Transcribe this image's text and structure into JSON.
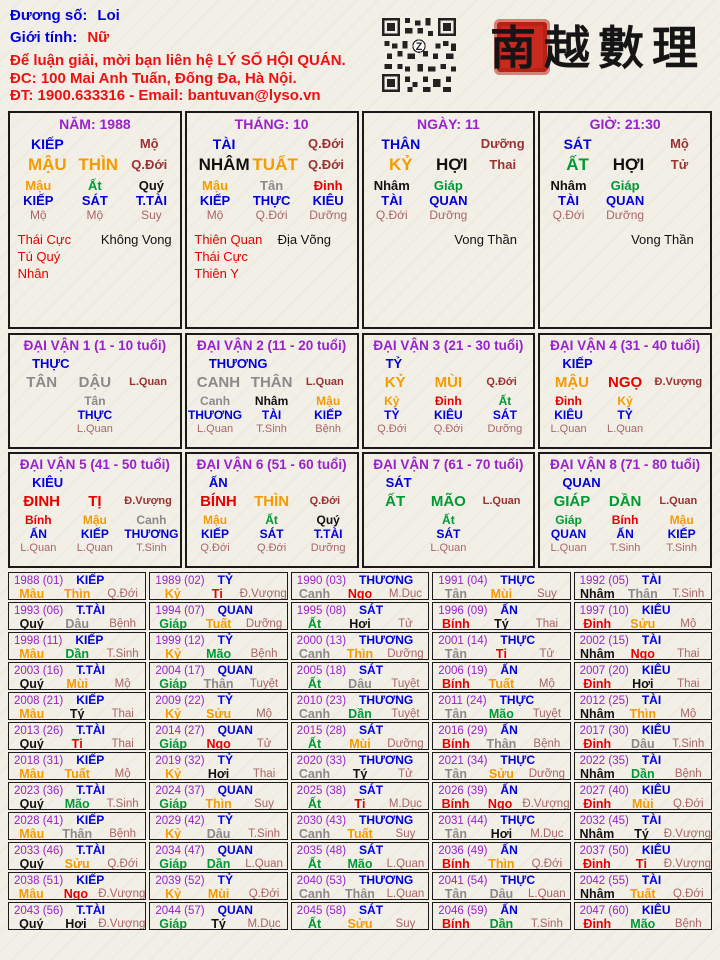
{
  "palette": {
    "blue": "#0000DB",
    "purple": "#9922CC",
    "orange": "#F59B00",
    "red": "#E80000",
    "green": "#009933",
    "gray": "#8A8A8A",
    "black": "#111111",
    "maroon": "#993333",
    "stage_light": "#AA6666",
    "header_red": "#EE1111",
    "seal_red": "#C92A1D"
  },
  "header": {
    "name_label": "Đương số:",
    "name_value": "Loi",
    "gender_label": "Giới tính:",
    "gender_value": "Nữ",
    "contact_line1": "Để luận giải, mời bạn liên hệ LÝ SỐ HỘI QUÁN.",
    "contact_line2": "ĐC: 100 Mai Anh Tuấn, Đống Đa, Hà Nội.",
    "contact_line3": "ĐT: 1900.633316 - Email: bantuvan@lyso.vn",
    "logo_text": "南越數理",
    "qr_label": "Z"
  },
  "element_colors": {
    "Giáp": "green",
    "Ất": "green",
    "Bính": "red",
    "Đinh": "red",
    "Mậu": "orange",
    "Kỷ": "orange",
    "Canh": "gray",
    "Tân": "gray",
    "Nhâm": "black",
    "Quý": "black",
    "Dần": "green",
    "Mão": "green",
    "Tị": "red",
    "Ngọ": "red",
    "Thìn": "orange",
    "Tuất": "orange",
    "Sửu": "orange",
    "Mùi": "orange",
    "Thân": "gray",
    "Dậu": "gray",
    "Hợi": "black",
    "Tý": "black"
  },
  "pillars": [
    {
      "title": "NĂM: 1988",
      "god": "KIẾP",
      "top_right_stage": "Mộ",
      "stem": "MẬU",
      "stem_color": "orange",
      "branch": "THÌN",
      "branch_color": "orange",
      "stage": "Q.Đới",
      "hidden": [
        {
          "stem": "Mậu",
          "color": "orange",
          "god": "KIẾP",
          "stage": "Mộ"
        },
        {
          "stem": "Ất",
          "color": "green",
          "god": "SÁT",
          "stage": "Mộ"
        },
        {
          "stem": "Quý",
          "color": "black",
          "god": "T.TÀI",
          "stage": "Suy"
        }
      ],
      "notes_red": [
        "Thái Cực",
        "Tú Quý Nhân"
      ],
      "notes_black": [
        "Không Vong"
      ]
    },
    {
      "title": "THÁNG: 10",
      "god": "TÀI",
      "top_right_stage": "Q.Đới",
      "stem": "NHÂM",
      "stem_color": "black",
      "branch": "TUẤT",
      "branch_color": "orange",
      "stage": "Q.Đới",
      "hidden": [
        {
          "stem": "Mậu",
          "color": "orange",
          "god": "KIẾP",
          "stage": "Mộ"
        },
        {
          "stem": "Tân",
          "color": "gray",
          "god": "THỰC",
          "stage": "Q.Đới"
        },
        {
          "stem": "Đinh",
          "color": "red",
          "god": "KIÊU",
          "stage": "Dưỡng"
        }
      ],
      "notes_red": [
        "Thiên Quan",
        "Thái Cực",
        "Thiên Y"
      ],
      "notes_black": [
        "Địa Võng"
      ]
    },
    {
      "title": "NGÀY: 11",
      "god": "THÂN",
      "top_right_stage": "Dưỡng",
      "stem": "KỶ",
      "stem_color": "orange",
      "branch": "HỢI",
      "branch_color": "black",
      "stage": "Thai",
      "hidden": [
        {
          "stem": "Nhâm",
          "color": "black",
          "god": "TÀI",
          "stage": "Q.Đới"
        },
        {
          "stem": "Giáp",
          "color": "green",
          "god": "QUAN",
          "stage": "Dưỡng"
        }
      ],
      "notes_red": [],
      "notes_black": [
        "Vong Thần"
      ]
    },
    {
      "title": "GIỜ: 21:30",
      "god": "SÁT",
      "top_right_stage": "Mộ",
      "stem": "ẤT",
      "stem_color": "green",
      "branch": "HỢI",
      "branch_color": "black",
      "stage": "Tử",
      "hidden": [
        {
          "stem": "Nhâm",
          "color": "black",
          "god": "TÀI",
          "stage": "Q.Đới"
        },
        {
          "stem": "Giáp",
          "color": "green",
          "god": "QUAN",
          "stage": "Dưỡng"
        }
      ],
      "notes_red": [],
      "notes_black": [
        "Vong Thần"
      ]
    }
  ],
  "dai_van": [
    {
      "title": "ĐẠI VẬN 1 (1 - 10 tuổi)",
      "god": "THỰC",
      "stem": "TÂN",
      "stem_color": "gray",
      "branch": "DẬU",
      "branch_color": "gray",
      "stage": "L.Quan",
      "hidden": [
        {
          "stem": "Tân",
          "color": "gray",
          "god": "THỰC",
          "stage": "L.Quan"
        }
      ]
    },
    {
      "title": "ĐẠI VẬN 2 (11 - 20 tuổi)",
      "god": "THƯƠNG",
      "stem": "CANH",
      "stem_color": "gray",
      "branch": "THÂN",
      "branch_color": "gray",
      "stage": "L.Quan",
      "hidden": [
        {
          "stem": "Canh",
          "color": "gray",
          "god": "THƯƠNG",
          "stage": "L.Quan"
        },
        {
          "stem": "Nhâm",
          "color": "black",
          "god": "TÀI",
          "stage": "T.Sinh"
        },
        {
          "stem": "Mậu",
          "color": "orange",
          "god": "KIẾP",
          "stage": "Bệnh"
        }
      ]
    },
    {
      "title": "ĐẠI VẬN 3 (21 - 30 tuổi)",
      "god": "TỶ",
      "stem": "KỶ",
      "stem_color": "orange",
      "branch": "MÙI",
      "branch_color": "orange",
      "stage": "Q.Đới",
      "hidden": [
        {
          "stem": "Kỷ",
          "color": "orange",
          "god": "TỶ",
          "stage": "Q.Đới"
        },
        {
          "stem": "Đinh",
          "color": "red",
          "god": "KIÊU",
          "stage": "Q.Đới"
        },
        {
          "stem": "Ất",
          "color": "green",
          "god": "SÁT",
          "stage": "Dưỡng"
        }
      ]
    },
    {
      "title": "ĐẠI VẬN 4 (31 - 40 tuổi)",
      "god": "KIẾP",
      "stem": "MẬU",
      "stem_color": "orange",
      "branch": "NGỌ",
      "branch_color": "red",
      "stage": "Đ.Vượng",
      "hidden": [
        {
          "stem": "Đinh",
          "color": "red",
          "god": "KIÊU",
          "stage": "L.Quan"
        },
        {
          "stem": "Kỷ",
          "color": "orange",
          "god": "TỶ",
          "stage": "L.Quan"
        }
      ]
    },
    {
      "title": "ĐẠI VẬN 5 (41 - 50 tuổi)",
      "god": "KIÊU",
      "stem": "ĐINH",
      "stem_color": "red",
      "branch": "TỊ",
      "branch_color": "red",
      "stage": "Đ.Vượng",
      "hidden": [
        {
          "stem": "Bính",
          "color": "red",
          "god": "ẤN",
          "stage": "L.Quan"
        },
        {
          "stem": "Mậu",
          "color": "orange",
          "god": "KIẾP",
          "stage": "L.Quan"
        },
        {
          "stem": "Canh",
          "color": "gray",
          "god": "THƯƠNG",
          "stage": "T.Sinh"
        }
      ]
    },
    {
      "title": "ĐẠI VẬN 6 (51 - 60 tuổi)",
      "god": "ẤN",
      "stem": "BÍNH",
      "stem_color": "red",
      "branch": "THÌN",
      "branch_color": "orange",
      "stage": "Q.Đới",
      "hidden": [
        {
          "stem": "Mậu",
          "color": "orange",
          "god": "KIẾP",
          "stage": "Q.Đới"
        },
        {
          "stem": "Ất",
          "color": "green",
          "god": "SÁT",
          "stage": "Q.Đới"
        },
        {
          "stem": "Quý",
          "color": "black",
          "god": "T.TÀI",
          "stage": "Dưỡng"
        }
      ]
    },
    {
      "title": "ĐẠI VẬN 7 (61 - 70 tuổi)",
      "god": "SÁT",
      "stem": "ẤT",
      "stem_color": "green",
      "branch": "MÃO",
      "branch_color": "green",
      "stage": "L.Quan",
      "hidden": [
        {
          "stem": "Ất",
          "color": "green",
          "god": "SÁT",
          "stage": "L.Quan"
        }
      ]
    },
    {
      "title": "ĐẠI VẬN 8 (71 - 80 tuổi)",
      "god": "QUAN",
      "stem": "GIÁP",
      "stem_color": "green",
      "branch": "DẦN",
      "branch_color": "green",
      "stage": "L.Quan",
      "hidden": [
        {
          "stem": "Giáp",
          "color": "green",
          "god": "QUAN",
          "stage": "L.Quan"
        },
        {
          "stem": "Bính",
          "color": "red",
          "god": "ẤN",
          "stage": "T.Sinh"
        },
        {
          "stem": "Mậu",
          "color": "orange",
          "god": "KIẾP",
          "stage": "T.Sinh"
        }
      ]
    }
  ],
  "years": [
    {
      "label": "1988 (01)",
      "god": "KIẾP",
      "stem": "Mậu",
      "branch": "Thìn",
      "stage": "Q.Đới"
    },
    {
      "label": "1989 (02)",
      "god": "TỶ",
      "stem": "Kỷ",
      "branch": "Tị",
      "stage": "Đ.Vượng"
    },
    {
      "label": "1990 (03)",
      "god": "THƯƠNG",
      "stem": "Canh",
      "branch": "Ngọ",
      "stage": "M.Dục"
    },
    {
      "label": "1991 (04)",
      "god": "THỰC",
      "stem": "Tân",
      "branch": "Mùi",
      "stage": "Suy"
    },
    {
      "label": "1992 (05)",
      "god": "TÀI",
      "stem": "Nhâm",
      "branch": "Thân",
      "stage": "T.Sinh"
    },
    {
      "label": "1993 (06)",
      "god": "T.TÀI",
      "stem": "Quý",
      "branch": "Dậu",
      "stage": "Bệnh"
    },
    {
      "label": "1994 (07)",
      "god": "QUAN",
      "stem": "Giáp",
      "branch": "Tuất",
      "stage": "Dưỡng"
    },
    {
      "label": "1995 (08)",
      "god": "SÁT",
      "stem": "Ất",
      "branch": "Hợi",
      "stage": "Tử"
    },
    {
      "label": "1996 (09)",
      "god": "ẤN",
      "stem": "Bính",
      "branch": "Tý",
      "stage": "Thai"
    },
    {
      "label": "1997 (10)",
      "god": "KIÊU",
      "stem": "Đinh",
      "branch": "Sửu",
      "stage": "Mộ"
    },
    {
      "label": "1998 (11)",
      "god": "KIẾP",
      "stem": "Mậu",
      "branch": "Dần",
      "stage": "T.Sinh"
    },
    {
      "label": "1999 (12)",
      "god": "TỶ",
      "stem": "Kỷ",
      "branch": "Mão",
      "stage": "Bệnh"
    },
    {
      "label": "2000 (13)",
      "god": "THƯƠNG",
      "stem": "Canh",
      "branch": "Thìn",
      "stage": "Dưỡng"
    },
    {
      "label": "2001 (14)",
      "god": "THỰC",
      "stem": "Tân",
      "branch": "Tị",
      "stage": "Tử"
    },
    {
      "label": "2002 (15)",
      "god": "TÀI",
      "stem": "Nhâm",
      "branch": "Ngọ",
      "stage": "Thai"
    },
    {
      "label": "2003 (16)",
      "god": "T.TÀI",
      "stem": "Quý",
      "branch": "Mùi",
      "stage": "Mộ"
    },
    {
      "label": "2004 (17)",
      "god": "QUAN",
      "stem": "Giáp",
      "branch": "Thân",
      "stage": "Tuyệt"
    },
    {
      "label": "2005 (18)",
      "god": "SÁT",
      "stem": "Ất",
      "branch": "Dậu",
      "stage": "Tuyệt"
    },
    {
      "label": "2006 (19)",
      "god": "ẤN",
      "stem": "Bính",
      "branch": "Tuất",
      "stage": "Mộ"
    },
    {
      "label": "2007 (20)",
      "god": "KIÊU",
      "stem": "Đinh",
      "branch": "Hợi",
      "stage": "Thai"
    },
    {
      "label": "2008 (21)",
      "god": "KIẾP",
      "stem": "Mậu",
      "branch": "Tý",
      "stage": "Thai"
    },
    {
      "label": "2009 (22)",
      "god": "TỶ",
      "stem": "Kỷ",
      "branch": "Sửu",
      "stage": "Mộ"
    },
    {
      "label": "2010 (23)",
      "god": "THƯƠNG",
      "stem": "Canh",
      "branch": "Dần",
      "stage": "Tuyệt"
    },
    {
      "label": "2011 (24)",
      "god": "THỰC",
      "stem": "Tân",
      "branch": "Mão",
      "stage": "Tuyệt"
    },
    {
      "label": "2012 (25)",
      "god": "TÀI",
      "stem": "Nhâm",
      "branch": "Thìn",
      "stage": "Mộ"
    },
    {
      "label": "2013 (26)",
      "god": "T.TÀI",
      "stem": "Quý",
      "branch": "Tị",
      "stage": "Thai"
    },
    {
      "label": "2014 (27)",
      "god": "QUAN",
      "stem": "Giáp",
      "branch": "Ngọ",
      "stage": "Tử"
    },
    {
      "label": "2015 (28)",
      "god": "SÁT",
      "stem": "Ất",
      "branch": "Mùi",
      "stage": "Dưỡng"
    },
    {
      "label": "2016 (29)",
      "god": "ẤN",
      "stem": "Bính",
      "branch": "Thân",
      "stage": "Bệnh"
    },
    {
      "label": "2017 (30)",
      "god": "KIÊU",
      "stem": "Đinh",
      "branch": "Dậu",
      "stage": "T.Sinh"
    },
    {
      "label": "2018 (31)",
      "god": "KIẾP",
      "stem": "Mậu",
      "branch": "Tuất",
      "stage": "Mộ"
    },
    {
      "label": "2019 (32)",
      "god": "TỶ",
      "stem": "Kỷ",
      "branch": "Hợi",
      "stage": "Thai"
    },
    {
      "label": "2020 (33)",
      "god": "THƯƠNG",
      "stem": "Canh",
      "branch": "Tý",
      "stage": "Tử"
    },
    {
      "label": "2021 (34)",
      "god": "THỰC",
      "stem": "Tân",
      "branch": "Sửu",
      "stage": "Dưỡng"
    },
    {
      "label": "2022 (35)",
      "god": "TÀI",
      "stem": "Nhâm",
      "branch": "Dần",
      "stage": "Bệnh"
    },
    {
      "label": "2023 (36)",
      "god": "T.TÀI",
      "stem": "Quý",
      "branch": "Mão",
      "stage": "T.Sinh"
    },
    {
      "label": "2024 (37)",
      "god": "QUAN",
      "stem": "Giáp",
      "branch": "Thìn",
      "stage": "Suy"
    },
    {
      "label": "2025 (38)",
      "god": "SÁT",
      "stem": "Ất",
      "branch": "Tị",
      "stage": "M.Dục"
    },
    {
      "label": "2026 (39)",
      "god": "ẤN",
      "stem": "Bính",
      "branch": "Ngọ",
      "stage": "Đ.Vượng"
    },
    {
      "label": "2027 (40)",
      "god": "KIÊU",
      "stem": "Đinh",
      "branch": "Mùi",
      "stage": "Q.Đới"
    },
    {
      "label": "2028 (41)",
      "god": "KIẾP",
      "stem": "Mậu",
      "branch": "Thân",
      "stage": "Bệnh"
    },
    {
      "label": "2029 (42)",
      "god": "TỶ",
      "stem": "Kỷ",
      "branch": "Dậu",
      "stage": "T.Sinh"
    },
    {
      "label": "2030 (43)",
      "god": "THƯƠNG",
      "stem": "Canh",
      "branch": "Tuất",
      "stage": "Suy"
    },
    {
      "label": "2031 (44)",
      "god": "THỰC",
      "stem": "Tân",
      "branch": "Hợi",
      "stage": "M.Dục"
    },
    {
      "label": "2032 (45)",
      "god": "TÀI",
      "stem": "Nhâm",
      "branch": "Tý",
      "stage": "Đ.Vượng"
    },
    {
      "label": "2033 (46)",
      "god": "T.TÀI",
      "stem": "Quý",
      "branch": "Sửu",
      "stage": "Q.Đới"
    },
    {
      "label": "2034 (47)",
      "god": "QUAN",
      "stem": "Giáp",
      "branch": "Dần",
      "stage": "L.Quan"
    },
    {
      "label": "2035 (48)",
      "god": "SÁT",
      "stem": "Ất",
      "branch": "Mão",
      "stage": "L.Quan"
    },
    {
      "label": "2036 (49)",
      "god": "ẤN",
      "stem": "Bính",
      "branch": "Thìn",
      "stage": "Q.Đới"
    },
    {
      "label": "2037 (50)",
      "god": "KIÊU",
      "stem": "Đinh",
      "branch": "Tị",
      "stage": "Đ.Vượng"
    },
    {
      "label": "2038 (51)",
      "god": "KIẾP",
      "stem": "Mậu",
      "branch": "Ngọ",
      "stage": "Đ.Vượng"
    },
    {
      "label": "2039 (52)",
      "god": "TỶ",
      "stem": "Kỷ",
      "branch": "Mùi",
      "stage": "Q.Đới"
    },
    {
      "label": "2040 (53)",
      "god": "THƯƠNG",
      "stem": "Canh",
      "branch": "Thân",
      "stage": "L.Quan"
    },
    {
      "label": "2041 (54)",
      "god": "THỰC",
      "stem": "Tân",
      "branch": "Dậu",
      "stage": "L.Quan"
    },
    {
      "label": "2042 (55)",
      "god": "TÀI",
      "stem": "Nhâm",
      "branch": "Tuất",
      "stage": "Q.Đới"
    },
    {
      "label": "2043 (56)",
      "god": "T.TÀI",
      "stem": "Quý",
      "branch": "Hợi",
      "stage": "Đ.Vượng"
    },
    {
      "label": "2044 (57)",
      "god": "QUAN",
      "stem": "Giáp",
      "branch": "Tý",
      "stage": "M.Dục"
    },
    {
      "label": "2045 (58)",
      "god": "SÁT",
      "stem": "Ất",
      "branch": "Sửu",
      "stage": "Suy"
    },
    {
      "label": "2046 (59)",
      "god": "ẤN",
      "stem": "Bính",
      "branch": "Dần",
      "stage": "T.Sinh"
    },
    {
      "label": "2047 (60)",
      "god": "KIÊU",
      "stem": "Đinh",
      "branch": "Mão",
      "stage": "Bệnh"
    }
  ]
}
